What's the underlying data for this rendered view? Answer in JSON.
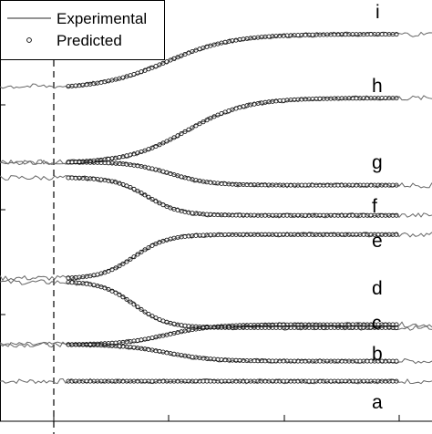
{
  "chart_data": {
    "type": "line",
    "title": "",
    "xlabel": "",
    "ylabel": "",
    "grid": false,
    "legend_position": "top-left",
    "legend": [
      {
        "label": "Experimental",
        "style": "line"
      },
      {
        "label": "Predicted",
        "style": "circles"
      }
    ],
    "ylim": [
      0,
      1
    ],
    "marker_x": 0.1,
    "series": [
      {
        "name": "a",
        "baseline": 0.095,
        "step": 0.0,
        "center": 0.4,
        "width": 0.08
      },
      {
        "name": "b",
        "baseline": 0.182,
        "step": -0.04,
        "center": 0.3,
        "width": 0.07
      },
      {
        "name": "c",
        "baseline": 0.182,
        "step": 0.048,
        "center": 0.3,
        "width": 0.07
      },
      {
        "name": "d",
        "baseline": 0.33,
        "step": -0.11,
        "center": 0.2,
        "width": 0.05
      },
      {
        "name": "e",
        "baseline": 0.34,
        "step": 0.105,
        "center": 0.2,
        "width": 0.05
      },
      {
        "name": "f",
        "baseline": 0.578,
        "step": -0.09,
        "center": 0.24,
        "width": 0.05
      },
      {
        "name": "g",
        "baseline": 0.615,
        "step": -0.055,
        "center": 0.31,
        "width": 0.06
      },
      {
        "name": "h",
        "baseline": 0.615,
        "step": 0.155,
        "center": 0.36,
        "width": 0.09
      },
      {
        "name": "i",
        "baseline": 0.795,
        "step": 0.13,
        "center": 0.3,
        "width": 0.1
      }
    ]
  }
}
